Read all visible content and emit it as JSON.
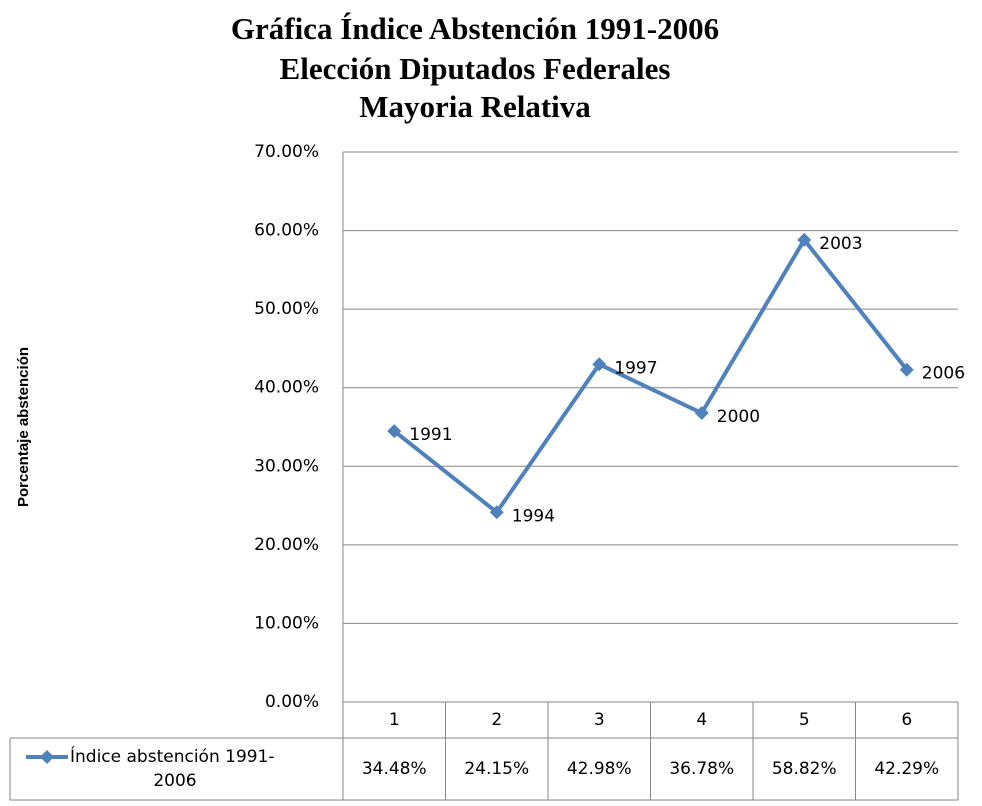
{
  "chart_data": {
    "type": "line",
    "title": [
      "Gráfica Índice Abstención 1991-2006",
      "Elección Diputados Federales",
      "Mayoria Relativa"
    ],
    "y_label": "Porcentaje abstención",
    "categories": [
      "1",
      "2",
      "3",
      "4",
      "5",
      "6"
    ],
    "point_labels": [
      "1991",
      "1994",
      "1997",
      "2000",
      "2003",
      "2006"
    ],
    "series": [
      {
        "name": [
          "Índice abstención 1991-",
          "2006"
        ],
        "color": "#4f81bd",
        "values": [
          34.48,
          24.15,
          42.98,
          36.78,
          58.82,
          42.29
        ],
        "value_labels": [
          "34.48%",
          "24.15%",
          "42.98%",
          "36.78%",
          "58.82%",
          "42.29%"
        ]
      }
    ],
    "ylim": [
      0,
      70
    ],
    "yticks": [
      {
        "value": 0,
        "label": "0.00%"
      },
      {
        "value": 10,
        "label": "10.00%"
      },
      {
        "value": 20,
        "label": "20.00%"
      },
      {
        "value": 30,
        "label": "30.00%"
      },
      {
        "value": 40,
        "label": "40.00%"
      },
      {
        "value": 50,
        "label": "50.00%"
      },
      {
        "value": 60,
        "label": "60.00%"
      },
      {
        "value": 70,
        "label": "70.00%"
      }
    ],
    "grid": true,
    "data_table": true
  }
}
